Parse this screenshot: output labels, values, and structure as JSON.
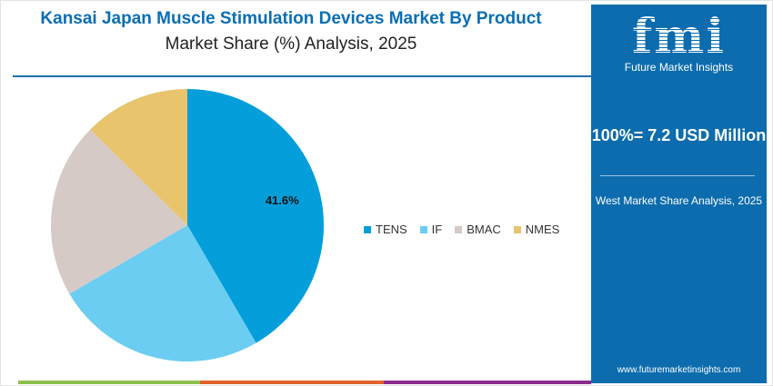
{
  "title": "Kansai Japan Muscle Stimulation Devices Market By Product",
  "subtitle": "Market Share (%) Analysis, 2025",
  "panel": {
    "logo_text": "fmi",
    "logo_sub": "Future Market Insights",
    "total": "100%= 7.2 USD Million",
    "region": "West Market Share Analysis, 2025",
    "url": "www.futuremarketinsights.com"
  },
  "colors": {
    "accent": "#0c6cad",
    "bars": [
      "#8dc04a",
      "#e2622b",
      "#8b2b8f"
    ]
  },
  "chart_data": {
    "type": "pie",
    "title": "Kansai Japan Muscle Stimulation Devices Market By Product",
    "subtitle": "Market Share (%) Analysis, 2025",
    "categories": [
      "TENS",
      "IF",
      "BMAC",
      "NMES"
    ],
    "values": [
      41.6,
      25.0,
      20.8,
      12.6
    ],
    "colors": [
      "#049fdb",
      "#6ccdf2",
      "#d5cac6",
      "#e8c46d"
    ],
    "data_labels": [
      "41.6%",
      "",
      "",
      ""
    ],
    "legend_position": "right"
  }
}
